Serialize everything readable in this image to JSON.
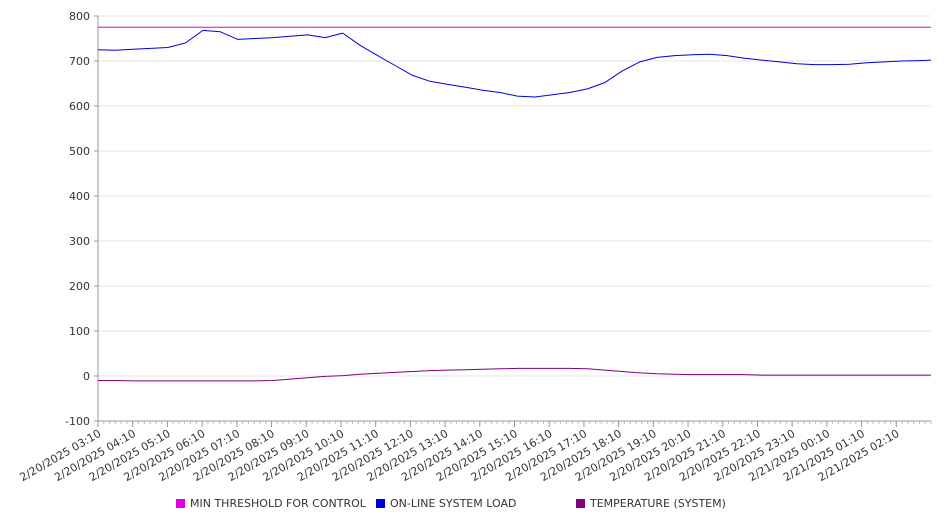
{
  "chart_data": {
    "type": "line",
    "title": "",
    "xlabel": "",
    "ylabel": "",
    "ylim": [
      -100,
      800
    ],
    "yticks": [
      800,
      700,
      600,
      500,
      400,
      300,
      200,
      100,
      0,
      -100
    ],
    "grid": true,
    "legend_position": "bottom",
    "x_tick_labels": [
      "2/20/2025 03:10",
      "2/20/2025 04:10",
      "2/20/2025 05:10",
      "2/20/2025 06:10",
      "2/20/2025 07:10",
      "2/20/2025 08:10",
      "2/20/2025 09:10",
      "2/20/2025 10:10",
      "2/20/2025 11:10",
      "2/20/2025 12:10",
      "2/20/2025 13:10",
      "2/20/2025 14:10",
      "2/20/2025 15:10",
      "2/20/2025 16:10",
      "2/20/2025 17:10",
      "2/20/2025 18:10",
      "2/20/2025 19:10",
      "2/20/2025 20:10",
      "2/20/2025 21:10",
      "2/20/2025 22:10",
      "2/20/2025 23:10",
      "2/21/2025 00:10",
      "2/21/2025 01:10",
      "2/21/2025 02:10"
    ],
    "x_start": "2/20/2025 03:10",
    "x_end": "2/21/2025 03:00",
    "x": [
      "2/20/2025 03:10",
      "2/20/2025 03:40",
      "2/20/2025 04:10",
      "2/20/2025 04:40",
      "2/20/2025 05:10",
      "2/20/2025 05:40",
      "2/20/2025 06:10",
      "2/20/2025 06:40",
      "2/20/2025 07:10",
      "2/20/2025 07:40",
      "2/20/2025 08:10",
      "2/20/2025 08:40",
      "2/20/2025 09:10",
      "2/20/2025 09:40",
      "2/20/2025 10:10",
      "2/20/2025 10:40",
      "2/20/2025 11:10",
      "2/20/2025 11:40",
      "2/20/2025 12:10",
      "2/20/2025 12:40",
      "2/20/2025 13:10",
      "2/20/2025 13:40",
      "2/20/2025 14:10",
      "2/20/2025 14:40",
      "2/20/2025 15:10",
      "2/20/2025 15:40",
      "2/20/2025 16:10",
      "2/20/2025 16:40",
      "2/20/2025 17:10",
      "2/20/2025 17:40",
      "2/20/2025 18:10",
      "2/20/2025 18:40",
      "2/20/2025 19:10",
      "2/20/2025 19:40",
      "2/20/2025 20:10",
      "2/20/2025 20:40",
      "2/20/2025 21:10",
      "2/20/2025 21:40",
      "2/20/2025 22:10",
      "2/20/2025 22:40",
      "2/20/2025 23:10",
      "2/20/2025 23:40",
      "2/21/2025 00:10",
      "2/21/2025 00:40",
      "2/21/2025 01:10",
      "2/21/2025 01:40",
      "2/21/2025 02:10",
      "2/21/2025 02:40",
      "2/21/2025 03:00"
    ],
    "series": [
      {
        "name": "MIN THRESHOLD FOR CONTROL",
        "color": "#e000e0",
        "values": [
          775,
          775,
          775,
          775,
          775,
          775,
          775,
          775,
          775,
          775,
          775,
          775,
          775,
          775,
          775,
          775,
          775,
          775,
          775,
          775,
          775,
          775,
          775,
          775,
          775,
          775,
          775,
          775,
          775,
          775,
          775,
          775,
          775,
          775,
          775,
          775,
          775,
          775,
          775,
          775,
          775,
          775,
          775,
          775,
          775,
          775,
          775,
          775,
          775
        ]
      },
      {
        "name": "ON-LINE SYSTEM LOAD",
        "color": "#0000dd",
        "values": [
          725,
          724,
          726,
          728,
          730,
          740,
          768,
          765,
          748,
          750,
          752,
          755,
          758,
          752,
          762,
          735,
          712,
          690,
          668,
          655,
          648,
          642,
          635,
          630,
          622,
          620,
          625,
          630,
          638,
          652,
          678,
          698,
          708,
          712,
          714,
          715,
          712,
          706,
          702,
          698,
          694,
          692,
          692,
          693,
          696,
          698,
          700,
          701,
          702
        ]
      },
      {
        "name": "TEMPERATURE (SYSTEM)",
        "color": "#800080",
        "values": [
          -10,
          -10,
          -11,
          -11,
          -11,
          -11,
          -11,
          -11,
          -11,
          -11,
          -10,
          -7,
          -4,
          -1,
          1,
          4,
          6,
          8,
          10,
          12,
          13,
          14,
          15,
          16,
          17,
          17,
          17,
          17,
          16,
          13,
          10,
          7,
          5,
          4,
          3,
          3,
          3,
          3,
          2,
          2,
          2,
          2,
          2,
          2,
          2,
          2,
          2,
          2,
          2
        ]
      }
    ]
  }
}
